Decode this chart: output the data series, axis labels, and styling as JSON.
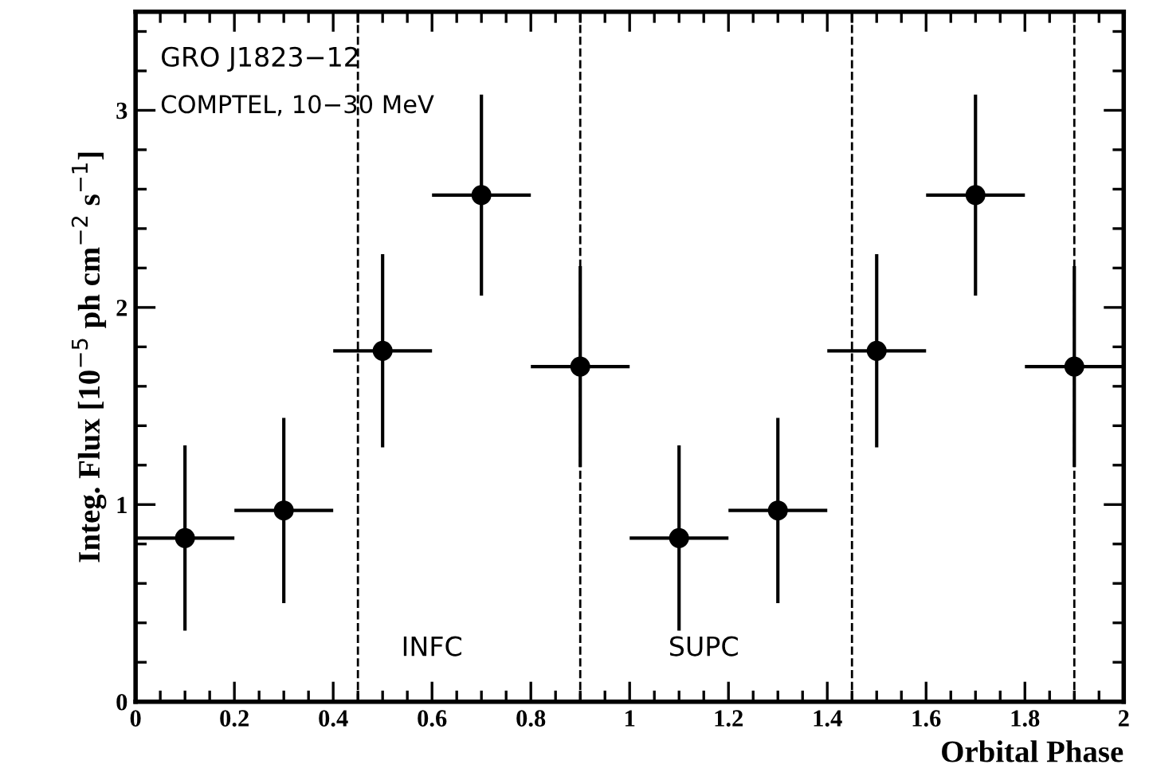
{
  "chart_data": {
    "type": "scatter",
    "xlabel": "Orbital Phase",
    "ylabel": "Integ. Flux [10$^{−5}$ ph cm$^{−2}$ s$^{−1}$]",
    "annotations": [
      "GRO J1823−12",
      "COMPTEL, 10−30 MeV",
      "INFC",
      "SUPC"
    ],
    "series": [
      {
        "color": "#000000",
        "x": [
          0.1,
          0.3,
          0.5,
          0.7,
          0.9,
          1.1,
          1.3,
          1.5,
          1.7,
          1.9
        ],
        "values": [
          0.83,
          0.97,
          1.78,
          2.57,
          1.7,
          0.83,
          0.97,
          1.78,
          2.57,
          1.7
        ],
        "errors": [
          0.47,
          0.47,
          0.49,
          0.51,
          0.51,
          0.47,
          0.47,
          0.49,
          0.51,
          0.51
        ],
        "xerrors": [
          0.1,
          0.1,
          0.1,
          0.1,
          0.1,
          0.1,
          0.1,
          0.1,
          0.1,
          0.1
        ]
      }
    ],
    "ref_lines": [
      {
        "axis": "x",
        "value": 0.45,
        "line_style": "dashed",
        "color": "#000000"
      },
      {
        "axis": "x",
        "value": 0.9,
        "line_style": "dashed",
        "color": "#000000"
      },
      {
        "axis": "x",
        "value": 1.45,
        "line_style": "dashed",
        "color": "#000000"
      },
      {
        "axis": "x",
        "value": 1.9,
        "line_style": "dashed",
        "color": "#000000"
      }
    ],
    "xlim": [
      0,
      2
    ],
    "ylim": [
      0,
      3.5
    ],
    "xticks": [
      0,
      0.2,
      0.4,
      0.6,
      0.8,
      1,
      1.2,
      1.4,
      1.6,
      1.8,
      2
    ],
    "yticks": [
      0,
      1,
      2,
      3
    ],
    "marker": "circle",
    "grid": false,
    "legend": false
  }
}
